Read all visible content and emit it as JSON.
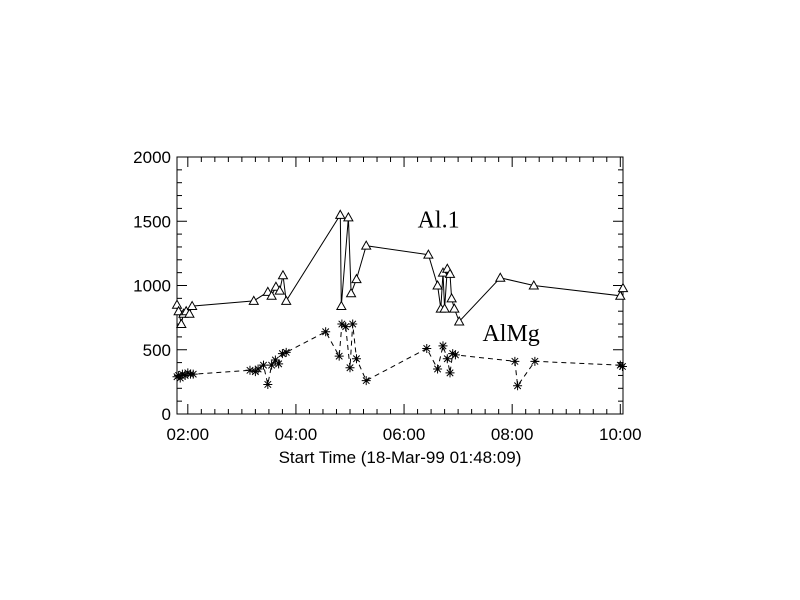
{
  "chart_data": {
    "type": "line",
    "xlabel": "Start Time (18-Mar-99 01:48:09)",
    "x_ticks": [
      "02:00",
      "04:00",
      "06:00",
      "08:00",
      "10:00"
    ],
    "x_tick_hours": [
      2,
      4,
      6,
      8,
      10
    ],
    "xlim_hours": [
      1.8,
      10.05
    ],
    "ylim": [
      0,
      2000
    ],
    "y_ticks": [
      0,
      500,
      1000,
      1500,
      2000
    ],
    "series": [
      {
        "name": "Al.1",
        "marker": "triangle",
        "line": "solid",
        "color": "#000000",
        "x": [
          1.8,
          1.83,
          1.88,
          1.92,
          1.97,
          2.03,
          2.08,
          3.22,
          3.48,
          3.55,
          3.63,
          3.7,
          3.76,
          3.82,
          4.82,
          4.84,
          4.97,
          5.02,
          5.12,
          5.3,
          6.45,
          6.62,
          6.68,
          6.72,
          6.75,
          6.8,
          6.85,
          6.88,
          6.93,
          7.02,
          7.78,
          8.4,
          10.0,
          10.05
        ],
        "y": [
          850,
          800,
          700,
          780,
          800,
          780,
          840,
          880,
          950,
          920,
          990,
          960,
          1080,
          880,
          1550,
          840,
          1530,
          940,
          1050,
          1310,
          1240,
          1000,
          820,
          1100,
          820,
          1130,
          1090,
          900,
          820,
          720,
          1060,
          1000,
          920,
          980
        ]
      },
      {
        "name": "AlMg",
        "marker": "asterisk",
        "line": "dashed",
        "color": "#000000",
        "x": [
          1.8,
          1.83,
          1.86,
          1.9,
          1.95,
          2.0,
          2.05,
          2.1,
          3.15,
          3.25,
          3.3,
          3.4,
          3.48,
          3.55,
          3.62,
          3.68,
          3.75,
          3.82,
          4.55,
          4.8,
          4.85,
          4.92,
          5.0,
          5.05,
          5.12,
          5.3,
          6.42,
          6.62,
          6.72,
          6.8,
          6.85,
          6.9,
          6.95,
          8.05,
          8.1,
          8.42,
          10.0,
          10.04
        ],
        "y": [
          290,
          300,
          280,
          310,
          300,
          320,
          310,
          310,
          340,
          330,
          350,
          380,
          230,
          380,
          420,
          390,
          470,
          480,
          640,
          450,
          700,
          680,
          360,
          700,
          430,
          260,
          510,
          350,
          530,
          430,
          320,
          470,
          460,
          410,
          220,
          410,
          380,
          370
        ]
      }
    ],
    "annotations": [
      {
        "text": "Al.1",
        "at_hours": 6.25,
        "at_value": 1450
      },
      {
        "text": "AlMg",
        "at_hours": 7.45,
        "at_value": 570
      }
    ],
    "grid": false,
    "legend": "none"
  }
}
